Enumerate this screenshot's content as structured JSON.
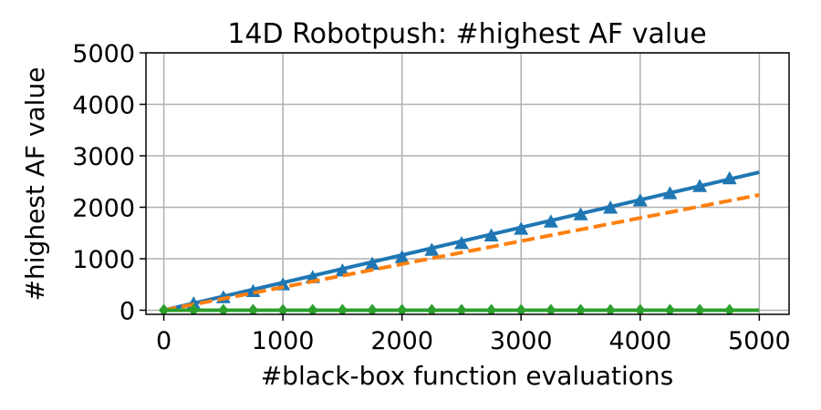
{
  "chart_data": {
    "type": "line",
    "title": "14D Robotpush: #highest AF value",
    "xlabel": "#black-box function evaluations",
    "ylabel": "#highest AF value",
    "xlim": [
      -150,
      5250
    ],
    "ylim": [
      -80,
      5000
    ],
    "xticks": [
      0,
      1000,
      2000,
      3000,
      4000,
      5000
    ],
    "yticks": [
      0,
      1000,
      2000,
      3000,
      4000,
      5000
    ],
    "xtick_labels": [
      "0",
      "1000",
      "2000",
      "3000",
      "4000",
      "5000"
    ],
    "ytick_labels": [
      "0",
      "1000",
      "2000",
      "3000",
      "4000",
      "5000"
    ],
    "grid": true,
    "series": [
      {
        "color": "#1f77b4",
        "linestyle": "solid",
        "marker": "triangle",
        "x": [
          0,
          5000
        ],
        "y": [
          0,
          2680
        ],
        "marker_x": [
          250,
          500,
          750,
          1000,
          1250,
          1500,
          1750,
          2000,
          2250,
          2500,
          2750,
          3000,
          3250,
          3500,
          3750,
          4000,
          4250,
          4500,
          4750
        ],
        "marker_y": [
          130,
          250,
          370,
          500,
          640,
          770,
          900,
          1030,
          1170,
          1300,
          1450,
          1580,
          1720,
          1860,
          1990,
          2130,
          2270,
          2410,
          2560
        ]
      },
      {
        "color": "#ff7f0e",
        "linestyle": "dashed",
        "marker": "none",
        "x": [
          0,
          5000
        ],
        "y": [
          0,
          2240
        ]
      },
      {
        "color": "#2ca02c",
        "linestyle": "solid",
        "marker": "diamond",
        "x": [
          0,
          5000
        ],
        "y": [
          0,
          0
        ],
        "marker_x": [
          0,
          250,
          500,
          750,
          1000,
          1250,
          1500,
          1750,
          2000,
          2250,
          2500,
          2750,
          3000,
          3250,
          3500,
          3750,
          4000,
          4250,
          4500,
          4750
        ],
        "marker_y": [
          0,
          0,
          0,
          0,
          0,
          0,
          0,
          0,
          0,
          0,
          0,
          0,
          0,
          0,
          0,
          0,
          0,
          0,
          0,
          0
        ]
      }
    ]
  }
}
